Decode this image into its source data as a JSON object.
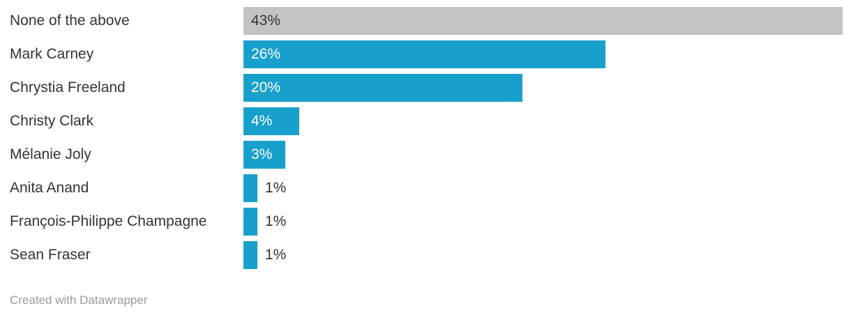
{
  "chart_data": {
    "type": "bar",
    "orientation": "horizontal",
    "title": "",
    "xlabel": "",
    "ylabel": "",
    "xlim": [
      0,
      43
    ],
    "grid": false,
    "legend": false,
    "categories": [
      "None of the above",
      "Mark Carney",
      "Chrystia Freeland",
      "Christy Clark",
      "Mélanie Joly",
      "Anita Anand",
      "François-Philippe Champagne",
      "Sean Fraser"
    ],
    "values": [
      43,
      26,
      20,
      4,
      3,
      1,
      1,
      1
    ],
    "value_labels": [
      "43%",
      "26%",
      "20%",
      "4%",
      "3%",
      "1%",
      "1%",
      "1%"
    ],
    "bar_colors": [
      "#C3C3C3",
      "#18A0CD",
      "#18A0CD",
      "#18A0CD",
      "#18A0CD",
      "#18A0CD",
      "#18A0CD",
      "#18A0CD"
    ],
    "value_label_placement": [
      "inside",
      "inside",
      "inside",
      "inside",
      "inside",
      "outside",
      "outside",
      "outside"
    ],
    "value_label_colors": [
      "#333333",
      "#FFFFFF",
      "#FFFFFF",
      "#FFFFFF",
      "#FFFFFF",
      "#333333",
      "#333333",
      "#333333"
    ]
  },
  "colors": {
    "background": "#FFFFFF",
    "category_label": "#333333",
    "footer_text": "#999999"
  },
  "footer": {
    "credit": "Created with Datawrapper"
  }
}
